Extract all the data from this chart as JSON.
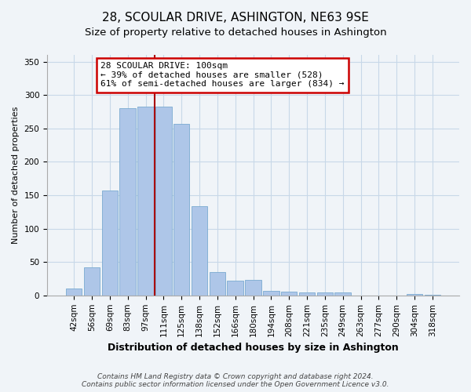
{
  "title": "28, SCOULAR DRIVE, ASHINGTON, NE63 9SE",
  "subtitle": "Size of property relative to detached houses in Ashington",
  "xlabel": "Distribution of detached houses by size in Ashington",
  "ylabel": "Number of detached properties",
  "bar_labels": [
    "42sqm",
    "56sqm",
    "69sqm",
    "83sqm",
    "97sqm",
    "111sqm",
    "125sqm",
    "138sqm",
    "152sqm",
    "166sqm",
    "180sqm",
    "194sqm",
    "208sqm",
    "221sqm",
    "235sqm",
    "249sqm",
    "263sqm",
    "277sqm",
    "290sqm",
    "304sqm",
    "318sqm"
  ],
  "bar_values": [
    10,
    42,
    157,
    280,
    283,
    283,
    257,
    134,
    35,
    22,
    23,
    7,
    6,
    5,
    4,
    5,
    0,
    0,
    0,
    2,
    1
  ],
  "bar_color": "#aec6e8",
  "vline_x_between": 4.5,
  "vline_color": "#aa0000",
  "annotation_title": "28 SCOULAR DRIVE: 100sqm",
  "annotation_line1": "← 39% of detached houses are smaller (528)",
  "annotation_line2": "61% of semi-detached houses are larger (834) →",
  "annotation_box_facecolor": "#ffffff",
  "annotation_box_edgecolor": "#cc0000",
  "ylim": [
    0,
    360
  ],
  "yticks": [
    0,
    50,
    100,
    150,
    200,
    250,
    300,
    350
  ],
  "footer1": "Contains HM Land Registry data © Crown copyright and database right 2024.",
  "footer2": "Contains public sector information licensed under the Open Government Licence v3.0.",
  "bg_color": "#f0f4f8",
  "grid_color": "#c8d8e8",
  "title_fontsize": 11,
  "subtitle_fontsize": 9.5,
  "xlabel_fontsize": 9,
  "ylabel_fontsize": 8,
  "tick_fontsize": 7.5,
  "footer_fontsize": 6.5
}
